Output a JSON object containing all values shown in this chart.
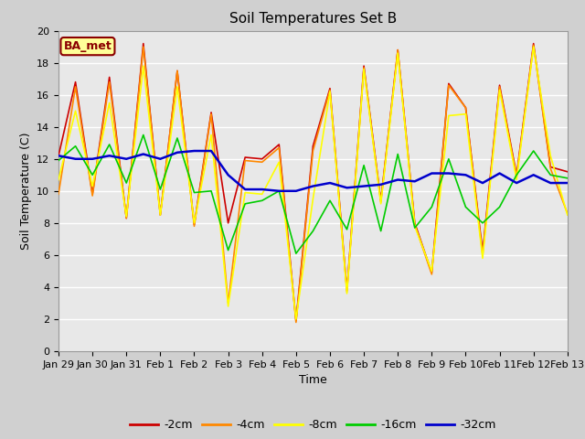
{
  "title": "Soil Temperatures Set B",
  "xlabel": "Time",
  "ylabel": "Soil Temperature (C)",
  "annotation": "BA_met",
  "ylim": [
    0,
    20
  ],
  "series": {
    "-2cm": {
      "color": "#cc0000",
      "linewidth": 1.2,
      "x": [
        0,
        0.5,
        1,
        1.5,
        2,
        2.5,
        3,
        3.5,
        4,
        4.5,
        5,
        5.5,
        6,
        6.5,
        7,
        7.5,
        8,
        8.5,
        9,
        9.5,
        10,
        10.5,
        11,
        11.5,
        12,
        12.5,
        13,
        13.5,
        14,
        14.5,
        15
      ],
      "y": [
        12.2,
        16.8,
        9.8,
        17.1,
        8.3,
        19.2,
        8.5,
        17.5,
        7.9,
        14.9,
        8.0,
        12.1,
        12.0,
        12.9,
        1.9,
        12.8,
        16.4,
        3.8,
        17.8,
        9.4,
        18.8,
        8.0,
        4.9,
        16.7,
        15.2,
        6.2,
        16.6,
        11.0,
        19.2,
        11.5,
        11.2
      ]
    },
    "-4cm": {
      "color": "#ff8800",
      "linewidth": 1.2,
      "x": [
        0,
        0.5,
        1,
        1.5,
        2,
        2.5,
        3,
        3.5,
        4,
        4.5,
        5,
        5.5,
        6,
        6.5,
        7,
        7.5,
        8,
        8.5,
        9,
        9.5,
        10,
        10.5,
        11,
        11.5,
        12,
        12.5,
        13,
        13.5,
        14,
        14.5,
        15
      ],
      "y": [
        9.8,
        16.5,
        9.7,
        16.8,
        8.3,
        19.0,
        8.5,
        17.5,
        7.8,
        14.8,
        3.0,
        11.9,
        11.8,
        12.7,
        1.8,
        12.5,
        16.3,
        3.7,
        17.7,
        9.3,
        18.8,
        7.9,
        4.8,
        16.6,
        15.2,
        6.0,
        16.5,
        10.9,
        19.1,
        11.4,
        8.6
      ]
    },
    "-8cm": {
      "color": "#ffff00",
      "linewidth": 1.2,
      "x": [
        0,
        0.5,
        1,
        1.5,
        2,
        2.5,
        3,
        3.5,
        4,
        4.5,
        5,
        5.5,
        6,
        6.5,
        7,
        7.5,
        8,
        8.5,
        9,
        9.5,
        10,
        10.5,
        11,
        11.5,
        12,
        12.5,
        13,
        13.5,
        14,
        14.5,
        15
      ],
      "y": [
        10.7,
        15.0,
        10.3,
        15.5,
        8.4,
        17.8,
        8.5,
        16.5,
        8.0,
        13.5,
        2.8,
        9.9,
        9.8,
        11.8,
        2.0,
        9.5,
        16.2,
        3.6,
        17.6,
        9.2,
        18.6,
        7.8,
        5.0,
        14.7,
        14.8,
        5.8,
        16.3,
        10.7,
        19.0,
        12.2,
        8.5
      ]
    },
    "-16cm": {
      "color": "#00cc00",
      "linewidth": 1.2,
      "x": [
        0,
        0.5,
        1,
        1.5,
        2,
        2.5,
        3,
        3.5,
        4,
        4.5,
        5,
        5.5,
        6,
        6.5,
        7,
        7.5,
        8,
        8.5,
        9,
        9.5,
        10,
        10.5,
        11,
        11.5,
        12,
        12.5,
        13,
        13.5,
        14,
        14.5,
        15
      ],
      "y": [
        11.9,
        12.8,
        11.0,
        12.9,
        10.5,
        13.5,
        10.1,
        13.3,
        9.9,
        10.0,
        6.3,
        9.2,
        9.4,
        10.0,
        6.1,
        7.5,
        9.4,
        7.6,
        11.6,
        7.5,
        12.3,
        7.7,
        9.0,
        12.0,
        9.0,
        8.0,
        9.0,
        11.0,
        12.5,
        11.0,
        10.8
      ]
    },
    "-32cm": {
      "color": "#0000cc",
      "linewidth": 1.8,
      "x": [
        0,
        0.5,
        1,
        1.5,
        2,
        2.5,
        3,
        3.5,
        4,
        4.5,
        5,
        5.5,
        6,
        6.5,
        7,
        7.5,
        8,
        8.5,
        9,
        9.5,
        10,
        10.5,
        11,
        11.5,
        12,
        12.5,
        13,
        13.5,
        14,
        14.5,
        15
      ],
      "y": [
        12.2,
        12.0,
        12.0,
        12.2,
        12.0,
        12.3,
        12.0,
        12.4,
        12.5,
        12.5,
        11.0,
        10.1,
        10.1,
        10.0,
        10.0,
        10.3,
        10.5,
        10.2,
        10.3,
        10.4,
        10.7,
        10.6,
        11.1,
        11.1,
        11.0,
        10.5,
        11.1,
        10.5,
        11.0,
        10.5,
        10.5
      ]
    }
  },
  "x_tick_labels": [
    "Jan 29",
    "Jan 30",
    "Jan 31",
    "Feb 1",
    "Feb 2",
    "Feb 3",
    "Feb 4",
    "Feb 5",
    "Feb 6",
    "Feb 7",
    "Feb 8",
    "Feb 9",
    "Feb 10",
    "Feb 11",
    "Feb 12",
    "Feb 13"
  ],
  "legend_labels": [
    "-2cm",
    "-4cm",
    "-8cm",
    "-16cm",
    "-32cm"
  ],
  "legend_colors": [
    "#cc0000",
    "#ff8800",
    "#ffff00",
    "#00cc00",
    "#0000cc"
  ],
  "fig_bg": "#d0d0d0",
  "axes_bg": "#e8e8e8",
  "grid_color": "#ffffff",
  "title_fontsize": 11,
  "axis_label_fontsize": 9,
  "tick_fontsize": 8,
  "legend_fontsize": 9,
  "annot_fontsize": 9
}
